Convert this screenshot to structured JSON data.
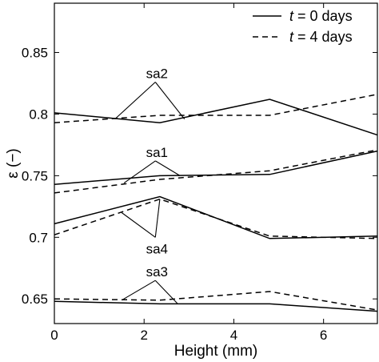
{
  "chart_data": {
    "type": "line",
    "title": "",
    "xlabel": "Height (mm)",
    "ylabel": "ε (−)",
    "xlim": [
      0,
      7.2
    ],
    "ylim": [
      0.63,
      0.89
    ],
    "grid": false,
    "legend_position": "top-right",
    "x_ticks": [
      0,
      2,
      4,
      6
    ],
    "y_ticks": [
      0.65,
      0.7,
      0.75,
      0.8,
      0.85
    ],
    "x_tick_labels": [
      "0",
      "2",
      "4",
      "6"
    ],
    "y_tick_labels": [
      "0.65",
      "0.7",
      "0.75",
      "0.8",
      "0.85"
    ],
    "legend": [
      {
        "label_italic": "t",
        "label_rest": " = 0 days",
        "style": "solid"
      },
      {
        "label_italic": "t",
        "label_rest": " = 4 days",
        "style": "dashed"
      }
    ],
    "series": [
      {
        "group": "sa2",
        "style": "solid",
        "x": [
          0,
          2.35,
          4.8,
          7.2
        ],
        "y": [
          0.801,
          0.793,
          0.812,
          0.783
        ]
      },
      {
        "group": "sa2",
        "style": "dashed",
        "x": [
          0,
          2.35,
          4.8,
          7.2
        ],
        "y": [
          0.793,
          0.799,
          0.799,
          0.816
        ]
      },
      {
        "group": "sa1",
        "style": "solid",
        "x": [
          0,
          2.35,
          4.8,
          7.2
        ],
        "y": [
          0.743,
          0.75,
          0.751,
          0.77
        ]
      },
      {
        "group": "sa1",
        "style": "dashed",
        "x": [
          0,
          2.35,
          4.8,
          7.2
        ],
        "y": [
          0.736,
          0.747,
          0.754,
          0.771
        ]
      },
      {
        "group": "sa4",
        "style": "solid",
        "x": [
          0,
          2.35,
          4.8,
          7.2
        ],
        "y": [
          0.711,
          0.733,
          0.699,
          0.701
        ]
      },
      {
        "group": "sa4",
        "style": "dashed",
        "x": [
          0,
          2.35,
          4.8,
          7.2
        ],
        "y": [
          0.702,
          0.731,
          0.701,
          0.699
        ]
      },
      {
        "group": "sa3",
        "style": "solid",
        "x": [
          0,
          2.35,
          4.8,
          7.2
        ],
        "y": [
          0.648,
          0.646,
          0.646,
          0.64
        ]
      },
      {
        "group": "sa3",
        "style": "dashed",
        "x": [
          0,
          2.35,
          4.8,
          7.2
        ],
        "y": [
          0.65,
          0.649,
          0.656,
          0.641
        ]
      }
    ],
    "annotations": [
      {
        "text": "sa2",
        "apex": [
          2.25,
          0.826
        ],
        "ends": [
          [
            1.35,
            0.796
          ],
          [
            2.9,
            0.796
          ]
        ]
      },
      {
        "text": "sa1",
        "apex": [
          2.25,
          0.762
        ],
        "ends": [
          [
            1.55,
            0.744
          ],
          [
            2.8,
            0.75
          ]
        ]
      },
      {
        "text": "sa4",
        "apex": [
          2.25,
          0.7
        ],
        "ends": [
          [
            1.5,
            0.72
          ],
          [
            2.35,
            0.731
          ]
        ]
      },
      {
        "text": "sa3",
        "apex": [
          2.25,
          0.665
        ],
        "ends": [
          [
            1.5,
            0.649
          ],
          [
            2.75,
            0.646
          ]
        ]
      }
    ]
  }
}
